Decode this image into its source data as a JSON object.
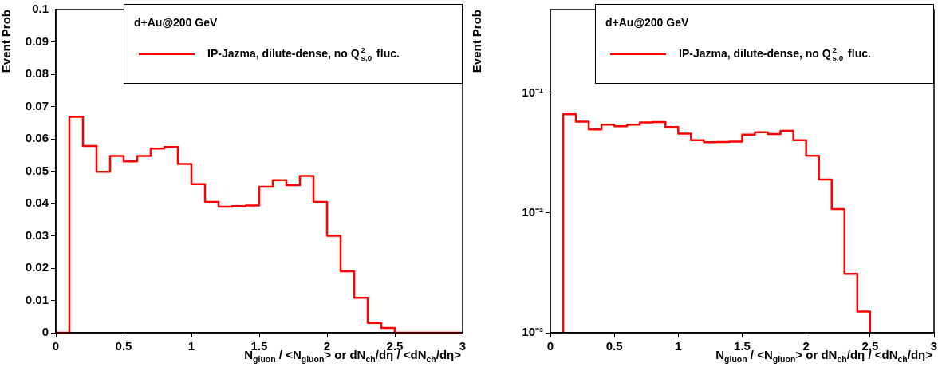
{
  "chart_data": [
    {
      "type": "histogram",
      "xlabel": "N$_{gluon}$ / <N$_{gluon}$>  or dN$_{ch}$/dη / <dN$_{ch}$/dη>",
      "ylabel": "Event Prob",
      "annotations": [
        "d+Au@200 GeV"
      ],
      "legend": "top right",
      "grid": false,
      "bins": [
        0,
        0.1,
        0.2,
        0.3,
        0.4,
        0.5,
        0.6,
        0.7,
        0.8,
        0.9,
        1.0,
        1.1,
        1.2,
        1.3,
        1.4,
        1.5,
        1.6,
        1.7,
        1.8,
        1.9,
        2.0,
        2.1,
        2.2,
        2.3,
        2.4,
        2.5,
        2.6,
        2.7,
        2.8,
        2.9,
        3.0
      ],
      "series": [
        {
          "name": "IP-Jazma, dilute-dense, no Q$^{2}$$_{s,0}$ fluc.",
          "color": "#ff0000",
          "values": [
            0,
            0.0668,
            0.0578,
            0.0498,
            0.0547,
            0.053,
            0.0547,
            0.057,
            0.0575,
            0.0522,
            0.046,
            0.0405,
            0.039,
            0.0392,
            0.0394,
            0.0452,
            0.0472,
            0.0457,
            0.0485,
            0.0405,
            0.03,
            0.019,
            0.0108,
            0.003,
            0.0015,
            0,
            0,
            0,
            0,
            0
          ]
        }
      ],
      "xlim": [
        0,
        3
      ],
      "xticks": [
        0,
        0.5,
        1,
        1.5,
        2,
        2.5,
        3
      ],
      "ylim": [
        0,
        0.1
      ],
      "yticks": [
        0,
        0.01,
        0.02,
        0.03,
        0.04,
        0.05,
        0.06,
        0.07,
        0.08,
        0.09,
        0.1
      ]
    },
    {
      "type": "histogram",
      "xlabel": "N$_{gluon}$ / <N$_{gluon}$>  or dN$_{ch}$/dη / <dN$_{ch}$/dη>",
      "ylabel": "Event Prob",
      "annotations": [
        "d+Au@200 GeV"
      ],
      "legend": "top right",
      "grid": false,
      "log": "y",
      "bins": [
        0.1,
        0.2,
        0.3,
        0.4,
        0.5,
        0.6,
        0.7,
        0.8,
        0.9,
        1.0,
        1.1,
        1.2,
        1.3,
        1.4,
        1.5,
        1.6,
        1.7,
        1.8,
        1.9,
        2.0,
        2.1,
        2.2,
        2.3,
        2.4,
        2.5
      ],
      "series": [
        {
          "name": "IP-Jazma, dilute-dense, no Q$^{2}$$_{s,0}$ fluc.",
          "color": "#ff0000",
          "values": [
            0.0668,
            0.0578,
            0.0498,
            0.0547,
            0.053,
            0.0547,
            0.057,
            0.0575,
            0.0522,
            0.046,
            0.0405,
            0.039,
            0.0392,
            0.0394,
            0.0452,
            0.0472,
            0.0457,
            0.0485,
            0.0405,
            0.03,
            0.019,
            0.0108,
            0.0031,
            0.0015
          ]
        }
      ],
      "xlim": [
        0,
        3
      ],
      "xticks": [
        0,
        0.5,
        1,
        1.5,
        2,
        2.5,
        3
      ],
      "ylim": [
        0.001,
        0.5
      ],
      "yticks": [
        {
          "value": 0.001,
          "label": "10⁻³"
        },
        {
          "value": 0.01,
          "label": "10⁻²"
        },
        {
          "value": 0.1,
          "label": "10⁻¹"
        }
      ]
    }
  ]
}
